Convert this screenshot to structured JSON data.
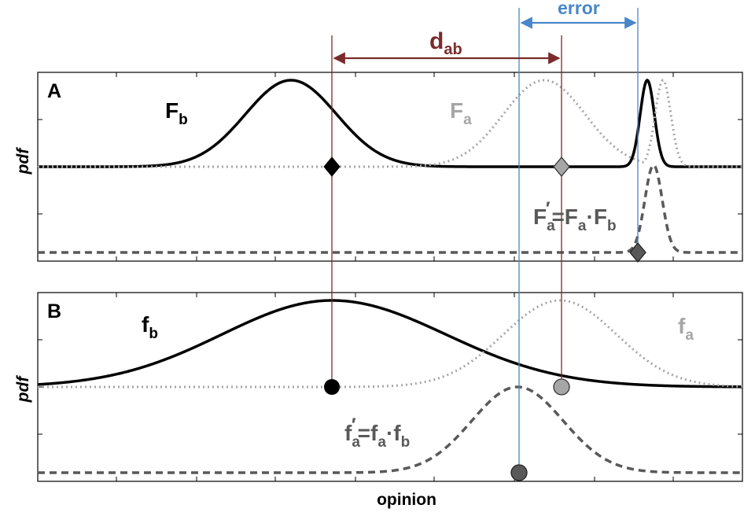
{
  "figure": {
    "x_axis_label": "opinion",
    "y_axis_label": "pdf",
    "colors": {
      "black": "#000000",
      "gray": "#a6a6a6",
      "dark_gray": "#595959",
      "dab_arrow": "#7b2b2b",
      "error_arrow": "#4a86c8"
    }
  },
  "top_annotations": {
    "dab_label": "d",
    "dab_sub": "ab",
    "error_label": "error"
  },
  "panel_a": {
    "letter": "A",
    "fb_label": "F",
    "fb_sub": "b",
    "fa_label": "F",
    "fa_sub": "a",
    "product_label_left": "F",
    "product_label_left_sub": "a",
    "product_label_prime": "′",
    "product_label_eq": "=F",
    "product_label_mid_sub": "a",
    "product_label_dot": "·F",
    "product_label_right_sub": "b"
  },
  "panel_b": {
    "letter": "B",
    "fb_label": "f",
    "fb_sub": "b",
    "fa_label": "f",
    "fa_sub": "a",
    "product_label_left": "f",
    "product_label_left_sub": "a",
    "product_label_prime": "′",
    "product_label_eq": "=f",
    "product_label_mid_sub": "a",
    "product_label_dot": "·f",
    "product_label_right_sub": "b"
  }
}
